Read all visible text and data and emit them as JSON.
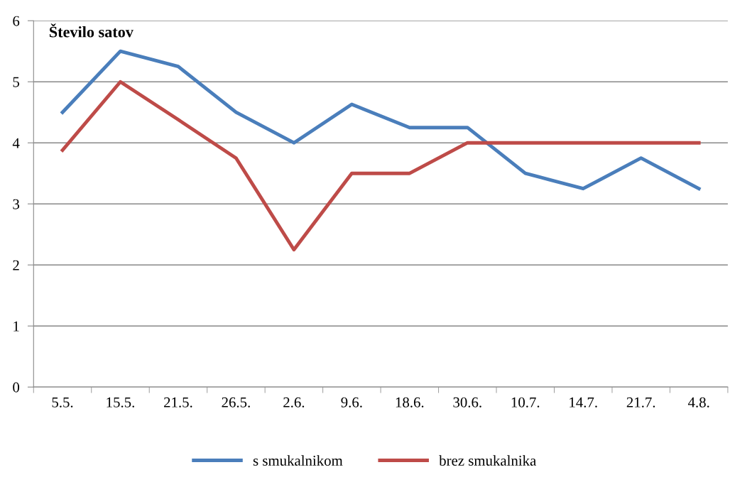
{
  "chart_data": {
    "type": "line",
    "ylabel": "Število satov",
    "categories": [
      "5.5.",
      "15.5.",
      "21.5.",
      "26.5.",
      "2.6.",
      "9.6.",
      "18.6.",
      "30.6.",
      "10.7.",
      "14.7.",
      "21.7.",
      "4.8."
    ],
    "series": [
      {
        "name": "s smukalnikom",
        "color": "#4a7ebb",
        "values": [
          4.5,
          5.5,
          5.25,
          4.5,
          4.0,
          4.63,
          4.25,
          4.25,
          3.5,
          3.25,
          3.75,
          3.25
        ]
      },
      {
        "name": "brez smukalnika",
        "color": "#be4b48",
        "values": [
          3.88,
          5.0,
          4.38,
          3.75,
          2.25,
          3.5,
          3.5,
          4.0,
          4.0,
          4.0,
          4.0,
          4.0
        ]
      }
    ],
    "ylim": [
      0,
      6
    ],
    "yticks": [
      0,
      1,
      2,
      3,
      4,
      5,
      6
    ],
    "grid": "y",
    "legend": "bottom",
    "marker": "none",
    "line_style": "solid"
  }
}
